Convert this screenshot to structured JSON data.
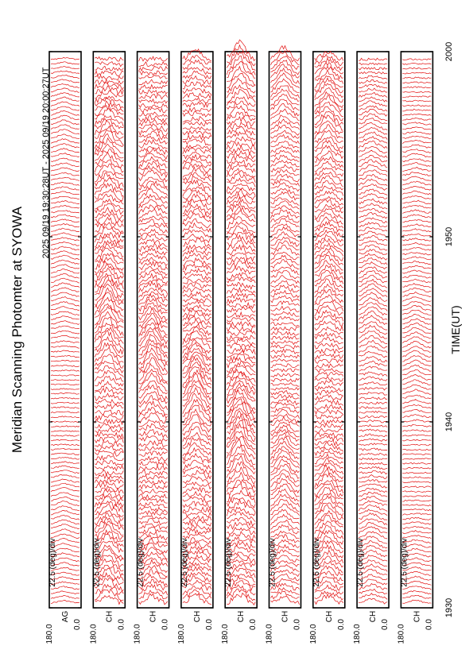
{
  "title": "Meridian Scanning Photomter at SYOWA",
  "time_range": "2025 09/19 19:30:28UT - 2025 09/19 20:00:27UT",
  "xlabel": "TIME(UT)",
  "scale_label": "22.5 (deg)/div",
  "colors": {
    "trace": "#e00000",
    "axis": "#000000"
  },
  "chart_data": {
    "type": "line",
    "title": "Meridian Scanning Photomter at SYOWA",
    "xlabel": "TIME(UT)",
    "x_ticks": [
      "1930",
      "1940",
      "1950",
      "2000"
    ],
    "xlim": [
      "19:30:28",
      "20:00:27"
    ],
    "ylim": [
      0.0,
      180.0
    ],
    "y_tick_labels": [
      "180.0",
      "0.0"
    ],
    "channels": [
      {
        "label": "AG",
        "activity": 0.0
      },
      {
        "label": "CH",
        "activity": 0.85
      },
      {
        "label": "CH",
        "activity": 0.75
      },
      {
        "label": "CH",
        "activity": 0.8
      },
      {
        "label": "CH",
        "activity": 0.9
      },
      {
        "label": "CH",
        "activity": 0.55
      },
      {
        "label": "CH",
        "activity": 0.7
      },
      {
        "label": "CH",
        "activity": 0.25
      },
      {
        "label": "CH",
        "activity": 0.05
      }
    ],
    "grid": false,
    "legend": "none"
  }
}
